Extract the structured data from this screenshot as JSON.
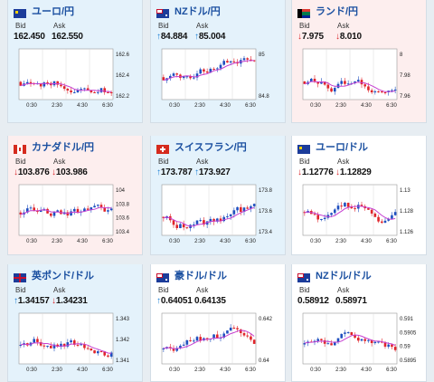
{
  "cards": [
    {
      "id": "eur-jpy",
      "title": "ユーロ/円",
      "flag": "eu",
      "bg": "up",
      "bid_label": "Bid",
      "ask_label": "Ask",
      "bid": "162.450",
      "ask": "162.550",
      "bid_dir": "",
      "ask_dir": "",
      "yticks": [
        "162.6",
        "162.4",
        "162.2"
      ],
      "xticks": [
        "0:30",
        "2:30",
        "4:30",
        "6:30"
      ]
    },
    {
      "id": "nzd-jpy",
      "title": "NZドル/円",
      "flag": "nz",
      "bg": "up",
      "bid_label": "Bid",
      "ask_label": "Ask",
      "bid": "84.884",
      "ask": "85.004",
      "bid_dir": "↑",
      "ask_dir": "↑",
      "yticks": [
        "85",
        "84.8"
      ],
      "xticks": [
        "0:30",
        "2:30",
        "4:30",
        "6:30"
      ]
    },
    {
      "id": "zar-jpy",
      "title": "ランド/円",
      "flag": "za",
      "bg": "dn",
      "bid_label": "Bid",
      "ask_label": "Ask",
      "bid": "7.975",
      "ask": "8.010",
      "bid_dir": "↓",
      "ask_dir": "↓",
      "yticks": [
        "8",
        "7.98",
        "7.96"
      ],
      "xticks": [
        "0:30",
        "2:30",
        "4:30",
        "6:30"
      ]
    },
    {
      "id": "cad-jpy",
      "title": "カナダドル/円",
      "flag": "ca",
      "bg": "dn",
      "bid_label": "Bid",
      "ask_label": "Ask",
      "bid": "103.876",
      "ask": "103.986",
      "bid_dir": "↓",
      "ask_dir": "↓",
      "yticks": [
        "104",
        "103.8",
        "103.6",
        "103.4"
      ],
      "xticks": [
        "0:30",
        "2:30",
        "4:30",
        "6:30"
      ]
    },
    {
      "id": "chf-jpy",
      "title": "スイスフラン/円",
      "flag": "ch",
      "bg": "up",
      "bid_label": "Bid",
      "ask_label": "Ask",
      "bid": "173.787",
      "ask": "173.927",
      "bid_dir": "↑",
      "ask_dir": "↑",
      "yticks": [
        "173.8",
        "173.6",
        "173.4"
      ],
      "xticks": [
        "0:30",
        "2:30",
        "4:30",
        "6:30"
      ]
    },
    {
      "id": "eur-usd",
      "title": "ユーロ/ドル",
      "flag": "eu",
      "bg": "nt",
      "bid_label": "Bid",
      "ask_label": "Ask",
      "bid": "1.12776",
      "ask": "1.12829",
      "bid_dir": "↓",
      "ask_dir": "↓",
      "yticks": [
        "1.13",
        "1.128",
        "1.126"
      ],
      "xticks": [
        "0:30",
        "2:30",
        "4:30",
        "6:30"
      ]
    },
    {
      "id": "gbp-usd",
      "title": "英ポンド/ドル",
      "flag": "uk",
      "bg": "up",
      "bid_label": "Bid",
      "ask_label": "Ask",
      "bid": "1.34157",
      "ask": "1.34231",
      "bid_dir": "↑",
      "ask_dir": "↓",
      "yticks": [
        "1.343",
        "1.342",
        "1.341"
      ],
      "xticks": [
        "0:30",
        "2:30",
        "4:30",
        "6:30"
      ]
    },
    {
      "id": "aud-usd",
      "title": "豪ドル/ドル",
      "flag": "au",
      "bg": "nt",
      "bid_label": "Bid",
      "ask_label": "Ask",
      "bid": "0.64051",
      "ask": "0.64135",
      "bid_dir": "↑",
      "ask_dir": "",
      "yticks": [
        "0.642",
        "0.64"
      ],
      "xticks": [
        "0:30",
        "2:30",
        "4:30",
        "6:30"
      ]
    },
    {
      "id": "nzd-usd",
      "title": "NZドル/ドル",
      "flag": "nz",
      "bg": "nt",
      "bid_label": "Bid",
      "ask_label": "Ask",
      "bid": "0.58912",
      "ask": "0.58971",
      "bid_dir": "",
      "ask_dir": "",
      "yticks": [
        "0.591",
        "0.5905",
        "0.59",
        "0.5895"
      ],
      "xticks": [
        "0:30",
        "2:30",
        "4:30",
        "6:30"
      ]
    }
  ],
  "colors": {
    "up_candle": "#1e4fbf",
    "down_candle": "#e0242a",
    "ma": "#c63fd1",
    "grid": "#d8d8d8",
    "up_arrow": "#1a7fd6",
    "down_arrow": "#d9262a"
  }
}
